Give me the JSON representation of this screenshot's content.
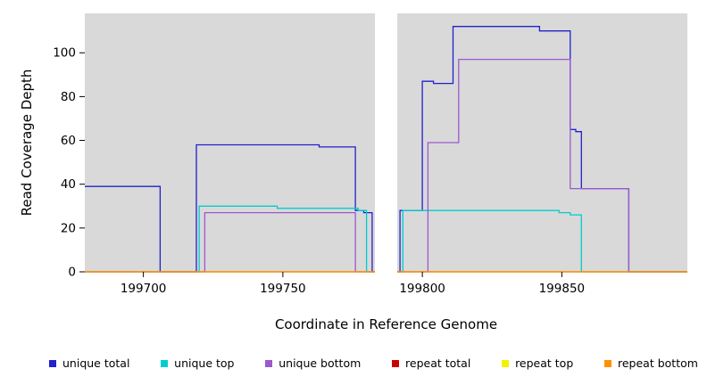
{
  "chart_data": {
    "type": "line",
    "title": "",
    "xlabel": "Coordinate in Reference Genome",
    "ylabel": "Read Coverage Depth",
    "xlim": [
      199679,
      199895
    ],
    "ylim": [
      0,
      118
    ],
    "xticks": [
      199700,
      199750,
      199800,
      199850
    ],
    "yticks": [
      0,
      20,
      40,
      60,
      80,
      100
    ],
    "grid": false,
    "legend_position": "bottom",
    "plot_bg": "#d9d9d9",
    "gap_region": {
      "from": 199783,
      "to": 199791,
      "color": "#ffffff"
    },
    "series": [
      {
        "name": "unique total",
        "color": "#2121cd",
        "points": [
          [
            199679,
            39
          ],
          [
            199706,
            0
          ],
          [
            199719,
            58
          ],
          [
            199763,
            57
          ],
          [
            199776,
            28
          ],
          [
            199779,
            27
          ],
          [
            199782,
            0
          ],
          [
            199792,
            28
          ],
          [
            199800,
            87
          ],
          [
            199804,
            86
          ],
          [
            199811,
            112
          ],
          [
            199842,
            110
          ],
          [
            199853,
            65
          ],
          [
            199855,
            64
          ],
          [
            199857,
            38
          ],
          [
            199874,
            0
          ],
          [
            199895,
            0
          ]
        ]
      },
      {
        "name": "unique top",
        "color": "#00cdcd",
        "points": [
          [
            199679,
            0
          ],
          [
            199720,
            30
          ],
          [
            199748,
            29
          ],
          [
            199777,
            28
          ],
          [
            199780,
            0
          ],
          [
            199793,
            28
          ],
          [
            199849,
            27
          ],
          [
            199853,
            26
          ],
          [
            199857,
            0
          ],
          [
            199895,
            0
          ]
        ]
      },
      {
        "name": "unique bottom",
        "color": "#9b59cf",
        "points": [
          [
            199679,
            0
          ],
          [
            199722,
            27
          ],
          [
            199776,
            0
          ],
          [
            199802,
            59
          ],
          [
            199813,
            97
          ],
          [
            199853,
            38
          ],
          [
            199874,
            0
          ],
          [
            199895,
            0
          ]
        ]
      },
      {
        "name": "repeat total",
        "color": "#cd0000",
        "points": [
          [
            199679,
            0
          ],
          [
            199895,
            0
          ]
        ]
      },
      {
        "name": "repeat top",
        "color": "#f2f200",
        "points": [
          [
            199679,
            0
          ],
          [
            199895,
            0
          ]
        ]
      },
      {
        "name": "repeat bottom",
        "color": "#ff9100",
        "points": [
          [
            199679,
            0
          ],
          [
            199895,
            0
          ]
        ]
      }
    ]
  }
}
